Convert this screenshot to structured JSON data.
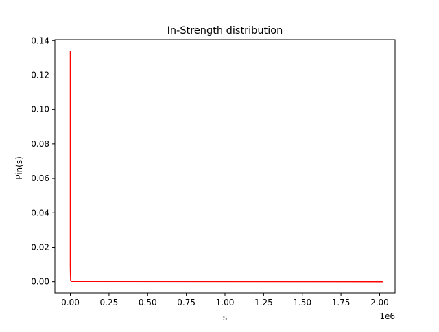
{
  "chart_data": {
    "type": "line",
    "title": "In-Strength distribution",
    "xlabel": "s",
    "ylabel": "Pin(s)",
    "x_offset_label": "1e6",
    "xlim": [
      -0.1,
      2.1
    ],
    "ylim": [
      -0.0065,
      0.1405
    ],
    "x_ticks": [
      0.0,
      0.25,
      0.5,
      0.75,
      1.0,
      1.25,
      1.5,
      1.75,
      2.0
    ],
    "x_tick_labels": [
      "0.00",
      "0.25",
      "0.50",
      "0.75",
      "1.00",
      "1.25",
      "1.50",
      "1.75",
      "2.00"
    ],
    "y_ticks": [
      0.0,
      0.02,
      0.04,
      0.06,
      0.08,
      0.1,
      0.12,
      0.14
    ],
    "y_tick_labels": [
      "0.00",
      "0.02",
      "0.04",
      "0.06",
      "0.08",
      "0.10",
      "0.12",
      "0.14"
    ],
    "grid": false,
    "legend": "none",
    "series": [
      {
        "color": "#ff0000",
        "x": [
          0.0,
          0.0,
          0.001,
          0.002,
          0.003,
          0.005,
          2.02
        ],
        "y": [
          0.134,
          0.009,
          0.004,
          0.001,
          0.0005,
          0.0002,
          0.0
        ]
      }
    ]
  }
}
